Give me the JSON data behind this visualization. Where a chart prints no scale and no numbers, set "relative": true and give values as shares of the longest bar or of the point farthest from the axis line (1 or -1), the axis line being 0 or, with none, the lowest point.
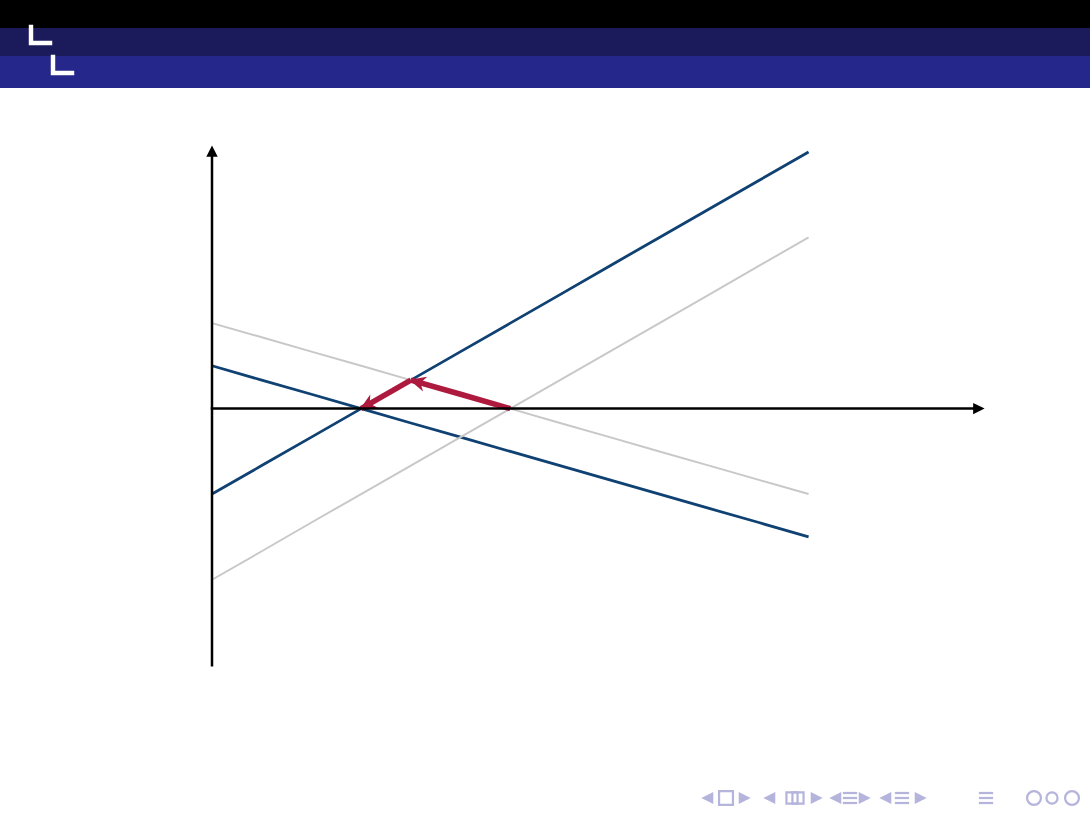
{
  "chart_data": {
    "type": "line",
    "relative": true,
    "marker": "none",
    "line_style": "solid",
    "categories": [
      null,
      null,
      null,
      null,
      null,
      null,
      null,
      null,
      null,
      null,
      null,
      null,
      null
    ],
    "series": [
      {
        "color": "#0f4173",
        "values": [
          -0.333,
          -0.222,
          -0.111,
          0,
          0.111,
          0.222,
          0.333,
          0.444,
          0.556,
          0.667,
          0.778,
          0.889,
          1
        ]
      },
      {
        "color": "#0f4173",
        "values": [
          0.167,
          0.111,
          0.056,
          0,
          -0.056,
          -0.111,
          -0.167,
          -0.222,
          -0.278,
          -0.333,
          -0.389,
          -0.444,
          -0.5
        ]
      },
      {
        "color": "#c8c8c8",
        "values": [
          -0.667,
          -0.556,
          -0.444,
          -0.333,
          -0.222,
          -0.111,
          0,
          0.111,
          0.222,
          0.333,
          0.444,
          0.556,
          0.667
        ]
      },
      {
        "color": "#c8c8c8",
        "values": [
          0.333,
          0.278,
          0.222,
          0.167,
          0.111,
          0.056,
          0,
          -0.056,
          -0.111,
          -0.167,
          -0.222,
          -0.278,
          -0.333
        ]
      },
      {
        "color": "#ad1a3e",
        "values": [
          null,
          null,
          null,
          null,
          0.111,
          0.056,
          0,
          null,
          null,
          null,
          null,
          null,
          null
        ]
      },
      {
        "color": "#ad1a3e",
        "values": [
          null,
          null,
          null,
          0,
          0.111,
          null,
          null,
          null,
          null,
          null,
          null,
          null,
          null
        ]
      }
    ]
  }
}
